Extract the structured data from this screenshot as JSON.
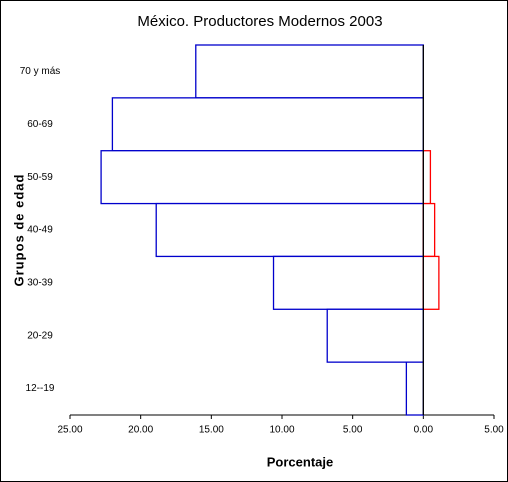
{
  "chart_data": {
    "type": "bar",
    "orientation": "horizontal",
    "title": "México. Productores Modernos 2003",
    "xlabel": "Porcentaje",
    "ylabel": "Grupos de edad",
    "categories": [
      "70 y más",
      "60-69",
      "50-59",
      "40-49",
      "30-39",
      "20-29",
      "12--19"
    ],
    "series": [
      {
        "color": "#0000cc",
        "values": [
          -16.1,
          -22.0,
          -22.8,
          -18.9,
          -10.6,
          -6.8,
          -1.2
        ]
      },
      {
        "color": "#ff0000",
        "values": [
          0,
          0,
          0.5,
          0.8,
          1.1,
          0,
          0
        ]
      }
    ],
    "xlim": [
      -25,
      5
    ],
    "xticks": [
      {
        "value": -25,
        "label": "25.00"
      },
      {
        "value": -20,
        "label": "20.00"
      },
      {
        "value": -15,
        "label": "15.00"
      },
      {
        "value": -10,
        "label": "10.00"
      },
      {
        "value": -5,
        "label": "5.00"
      },
      {
        "value": 0,
        "label": "0.00"
      },
      {
        "value": 5,
        "label": "5.00"
      }
    ]
  }
}
